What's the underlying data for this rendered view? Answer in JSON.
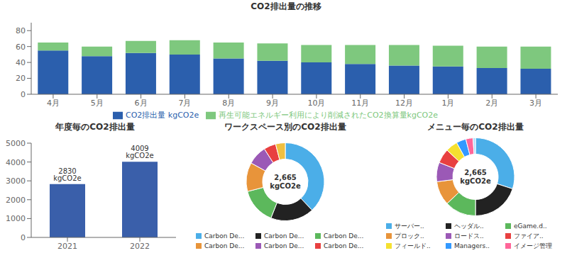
{
  "chart_data": [
    {
      "type": "bar",
      "title": "CO2排出量の推移",
      "categories": [
        "4月",
        "5月",
        "6月",
        "7月",
        "8月",
        "9月",
        "10月",
        "11月",
        "12月",
        "1月",
        "2月",
        "3月"
      ],
      "stacked": true,
      "series": [
        {
          "name": "CO2排出量 kgCO2e",
          "color": "#2b5fad",
          "values": [
            55,
            48,
            52,
            50,
            45,
            42,
            40,
            38,
            36,
            35,
            33,
            32
          ]
        },
        {
          "name": "再生可能エネルギー利用により削減されたCO2換算量kgCO2e",
          "color": "#7ec87e",
          "values": [
            10,
            12,
            15,
            18,
            20,
            22,
            22,
            24,
            26,
            26,
            27,
            28
          ]
        }
      ],
      "ylim": [
        0,
        90
      ],
      "yticks": [
        0,
        20,
        40,
        60,
        80
      ],
      "grid": false,
      "legend": "bottom"
    },
    {
      "type": "bar",
      "title": "年度毎のCO2排出量",
      "categories": [
        "2021",
        "2022"
      ],
      "values": [
        2830,
        4009
      ],
      "value_labels": [
        "2830 kgCO2e",
        "4009 kgCO2e"
      ],
      "data_labels": true,
      "color": "#3a5faa",
      "ylim": [
        0,
        5000
      ],
      "yticks": [
        0,
        1000,
        2000,
        3000,
        4000,
        5000
      ],
      "grid": false
    },
    {
      "type": "donut",
      "title": "ワークスペース別のCO2排出量",
      "categories": [
        "Carbon De...",
        "Carbon De...",
        "Carbon De...",
        "Carbon De...",
        "Carbon De...",
        "Carbon De...",
        null
      ],
      "values": [
        0.38,
        0.18,
        0.15,
        0.12,
        0.08,
        0.05,
        0.04
      ],
      "colors": [
        "#4baee8",
        "#222222",
        "#5cb85c",
        "#e8943a",
        "#9b59b6",
        "#e84040",
        "#f0c040"
      ],
      "annotations": [
        "2,665\nkgCO2e"
      ],
      "legend": "bottom"
    },
    {
      "type": "donut",
      "title": "メニュー毎のCO2排出量",
      "categories": [
        "サーバー..",
        "ヘッダル..",
        "eGame.d..",
        "プロック..",
        "ロードス..",
        "ファイア..",
        "フィールド..",
        "Managers..",
        "イメージ管理",
        null
      ],
      "values": [
        0.3,
        0.2,
        0.13,
        0.1,
        0.08,
        0.06,
        0.05,
        0.04,
        0.03,
        0.01
      ],
      "colors": [
        "#4baee8",
        "#222222",
        "#5cb85c",
        "#e8943a",
        "#9b59b6",
        "#e84040",
        "#f5e030",
        "#3399ff",
        "#ff6699",
        "#aaddff"
      ],
      "annotations": [
        "2,665\nkgCO2e"
      ],
      "legend": "bottom"
    }
  ]
}
